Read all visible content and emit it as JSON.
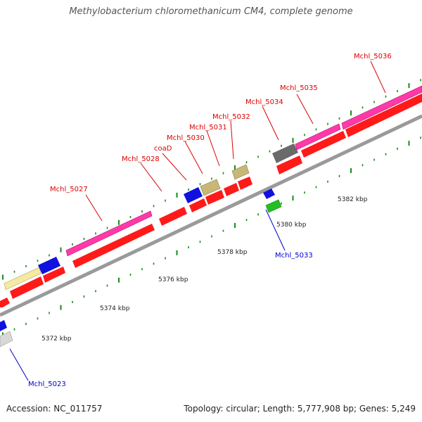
{
  "title": "Methylobacterium chloromethanicum CM4, complete genome",
  "footer": {
    "accession": "Accession: NC_011757",
    "summary": "Topology: circular; Length: 5,777,908 bp; Genes: 5,249"
  },
  "colors": {
    "cds": "#ff1a1a",
    "gene_pink": "#ff3aa8",
    "gene_blue": "#1010e0",
    "gene_khaki": "#c8b878",
    "gene_gray": "#6a6a6a",
    "gene_green": "#22c022",
    "gene_cream": "#f4eaa0",
    "gene_light": "#d8d8d8",
    "backbone": "#9a9a9a",
    "ticks": "#1a8a1a",
    "label_forward": "#dd0000",
    "label_reverse": "#0000cc"
  },
  "ruler_labels": [
    "5372 kbp",
    "5374 kbp",
    "5376 kbp",
    "5378 kbp",
    "5380 kbp",
    "5382 kbp"
  ],
  "forward_labels": [
    "Mchl_5027",
    "Mchl_5028",
    "coaD",
    "Mchl_5030",
    "Mchl_5031",
    "Mchl_5032",
    "Mchl_5034",
    "Mchl_5035",
    "Mchl_5036"
  ],
  "reverse_labels": [
    "Mchl_5023",
    "Mchl_5033"
  ]
}
